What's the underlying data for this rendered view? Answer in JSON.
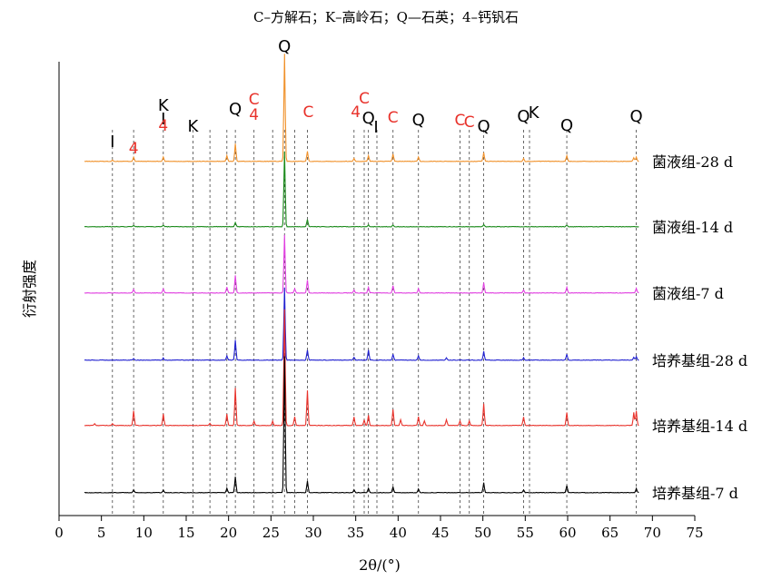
{
  "chart_data": {
    "type": "line",
    "title": "C–方解石；K–高岭石；Q—石英；4–钙钒石",
    "xlabel": "2θ/(°)",
    "ylabel": "衍射强度",
    "xlim": [
      0,
      75
    ],
    "x_ticks": [
      "0",
      "5",
      "10",
      "15",
      "20",
      "25",
      "30",
      "35",
      "40",
      "45",
      "50",
      "55",
      "60",
      "65",
      "70",
      "75"
    ],
    "x_range": [
      3,
      68.5
    ],
    "legend_placement": "right-inline",
    "grid": false,
    "reference_lines_x": [
      6.3,
      8.8,
      12.3,
      15.8,
      17.8,
      19.8,
      20.8,
      23.0,
      25.2,
      26.6,
      27.8,
      29.3,
      34.8,
      36.0,
      36.5,
      37.5,
      39.4,
      42.4,
      47.3,
      48.4,
      50.1,
      54.8,
      55.5,
      59.9,
      68.1
    ],
    "phase_labels": [
      {
        "text": "I",
        "x": 6.3,
        "color": "#000000"
      },
      {
        "text": "4",
        "x": 8.8,
        "color": "#e8312a"
      },
      {
        "text": "K",
        "x": 12.3,
        "color": "#000000"
      },
      {
        "text": "I",
        "x": 12.3,
        "color": "#000000"
      },
      {
        "text": "4",
        "x": 12.3,
        "color": "#e8312a"
      },
      {
        "text": "K",
        "x": 15.8,
        "color": "#000000"
      },
      {
        "text": "Q",
        "x": 20.8,
        "color": "#000000"
      },
      {
        "text": "C",
        "x": 23.0,
        "color": "#e8312a"
      },
      {
        "text": "4",
        "x": 23.0,
        "color": "#e8312a"
      },
      {
        "text": "Q",
        "x": 26.6,
        "color": "#000000"
      },
      {
        "text": "C",
        "x": 29.4,
        "color": "#e8312a"
      },
      {
        "text": "C",
        "x": 36.0,
        "color": "#e8312a"
      },
      {
        "text": "4",
        "x": 35.0,
        "color": "#e8312a"
      },
      {
        "text": "Q",
        "x": 36.5,
        "color": "#000000"
      },
      {
        "text": "I",
        "x": 37.4,
        "color": "#000000"
      },
      {
        "text": "C",
        "x": 39.4,
        "color": "#e8312a"
      },
      {
        "text": "Q",
        "x": 42.4,
        "color": "#000000"
      },
      {
        "text": "C",
        "x": 47.3,
        "color": "#e8312a"
      },
      {
        "text": "C",
        "x": 48.4,
        "color": "#e8312a"
      },
      {
        "text": "Q",
        "x": 50.1,
        "color": "#000000"
      },
      {
        "text": "Q",
        "x": 54.8,
        "color": "#000000"
      },
      {
        "text": "K",
        "x": 56.0,
        "color": "#000000"
      },
      {
        "text": "Q",
        "x": 59.9,
        "color": "#000000"
      },
      {
        "text": "Q",
        "x": 68.1,
        "color": "#000000"
      }
    ],
    "series": [
      {
        "name": "菌液组-28 d",
        "color": "#f0912a",
        "peaks": [
          [
            6.3,
            0.4
          ],
          [
            8.8,
            1.5
          ],
          [
            12.3,
            1.5
          ],
          [
            19.8,
            2
          ],
          [
            20.8,
            6
          ],
          [
            26.6,
            37
          ],
          [
            29.3,
            3.5
          ],
          [
            34.8,
            1
          ],
          [
            36.5,
            2
          ],
          [
            39.4,
            2.5
          ],
          [
            42.4,
            1.5
          ],
          [
            50.1,
            3
          ],
          [
            54.8,
            1
          ],
          [
            59.9,
            2
          ],
          [
            67.8,
            1.2
          ],
          [
            68.1,
            1.5
          ]
        ]
      },
      {
        "name": "菌液组-14 d",
        "color": "#1a8a1a",
        "peaks": [
          [
            8.8,
            0.4
          ],
          [
            12.3,
            0.5
          ],
          [
            20.8,
            1.5
          ],
          [
            26.6,
            26
          ],
          [
            29.3,
            2.5
          ],
          [
            36.5,
            0.6
          ],
          [
            39.4,
            0.6
          ],
          [
            50.1,
            0.7
          ],
          [
            59.9,
            0.5
          ]
        ]
      },
      {
        "name": "菌液组-7 d",
        "color": "#e040e0",
        "peaks": [
          [
            8.8,
            1.2
          ],
          [
            12.3,
            1.4
          ],
          [
            19.8,
            2
          ],
          [
            20.8,
            6
          ],
          [
            26.6,
            20
          ],
          [
            27.8,
            1.5
          ],
          [
            29.3,
            4.5
          ],
          [
            34.8,
            1
          ],
          [
            36.5,
            2
          ],
          [
            39.4,
            2.5
          ],
          [
            42.4,
            1.5
          ],
          [
            50.1,
            3.5
          ],
          [
            54.8,
            1
          ],
          [
            59.9,
            2
          ],
          [
            68.1,
            1.5
          ]
        ]
      },
      {
        "name": "培养基组-28 d",
        "color": "#2020d0",
        "peaks": [
          [
            8.8,
            0.6
          ],
          [
            12.3,
            0.7
          ],
          [
            19.8,
            1.5
          ],
          [
            20.8,
            7
          ],
          [
            26.6,
            25
          ],
          [
            29.3,
            3.5
          ],
          [
            34.8,
            1
          ],
          [
            36.5,
            3.5
          ],
          [
            39.4,
            2
          ],
          [
            42.4,
            1.5
          ],
          [
            45.7,
            0.8
          ],
          [
            50.1,
            3
          ],
          [
            54.8,
            0.8
          ],
          [
            59.9,
            2
          ],
          [
            67.8,
            1
          ],
          [
            68.1,
            1.2
          ]
        ]
      },
      {
        "name": "培养基组-14 d",
        "color": "#e8312a",
        "peaks": [
          [
            4.2,
            0.6
          ],
          [
            6.3,
            0.6
          ],
          [
            8.8,
            5
          ],
          [
            12.3,
            4
          ],
          [
            17.8,
            0.8
          ],
          [
            19.8,
            4
          ],
          [
            20.8,
            13
          ],
          [
            23.0,
            1.5
          ],
          [
            25.2,
            1.5
          ],
          [
            26.6,
            40
          ],
          [
            27.8,
            3
          ],
          [
            29.3,
            12
          ],
          [
            34.8,
            3
          ],
          [
            36.0,
            2
          ],
          [
            36.5,
            3.5
          ],
          [
            39.4,
            5.5
          ],
          [
            40.3,
            2
          ],
          [
            42.4,
            3
          ],
          [
            43.1,
            1.5
          ],
          [
            45.7,
            2
          ],
          [
            47.3,
            1.5
          ],
          [
            48.4,
            1.5
          ],
          [
            50.1,
            7.5
          ],
          [
            54.8,
            3
          ],
          [
            59.9,
            4.5
          ],
          [
            67.8,
            4.5
          ],
          [
            68.1,
            5
          ]
        ]
      },
      {
        "name": "培养基组-7 d",
        "color": "#000000",
        "peaks": [
          [
            8.8,
            1
          ],
          [
            12.3,
            1
          ],
          [
            19.8,
            1.5
          ],
          [
            20.8,
            5.5
          ],
          [
            26.6,
            47
          ],
          [
            29.3,
            4
          ],
          [
            34.8,
            1
          ],
          [
            36.5,
            1.5
          ],
          [
            39.4,
            2
          ],
          [
            42.4,
            1.2
          ],
          [
            50.1,
            3.5
          ],
          [
            54.8,
            1
          ],
          [
            59.9,
            2.5
          ],
          [
            68.1,
            1.5
          ]
        ]
      }
    ]
  }
}
